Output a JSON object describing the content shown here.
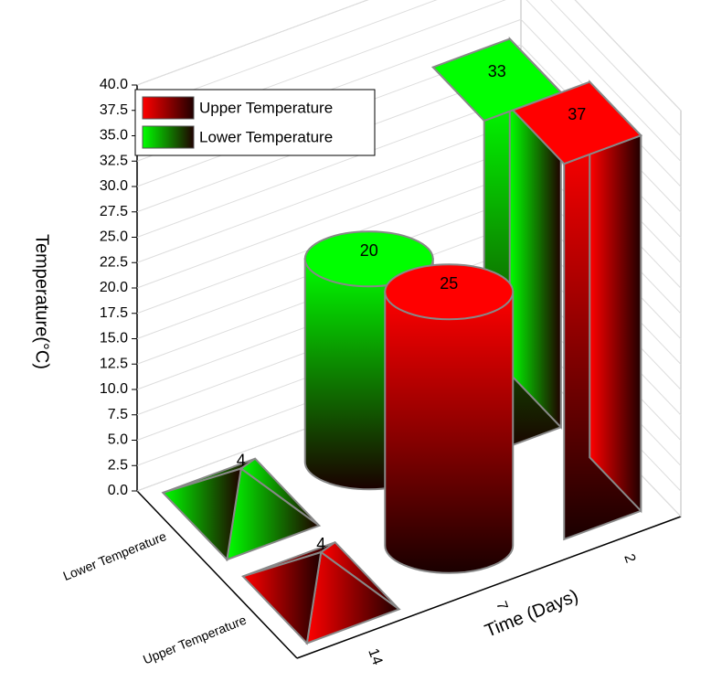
{
  "chart_data": {
    "type": "bar3d",
    "y_label": "Temperature(°C)",
    "x_label": "Time (Days)",
    "categories": [
      "2",
      "7",
      "14"
    ],
    "bar_shapes": [
      "box",
      "cylinder",
      "pyramid"
    ],
    "series": [
      {
        "name": "Upper Temperature",
        "color": "#ff0000",
        "values": [
          37,
          25,
          4
        ]
      },
      {
        "name": "Lower Temperature",
        "color": "#00ff00",
        "values": [
          33,
          20,
          4
        ]
      }
    ],
    "ylim": [
      0,
      40
    ],
    "yticks": [
      {
        "value": 0,
        "label": "0.0"
      },
      2.5,
      {
        "value": 5,
        "label": "5.0"
      },
      7.5,
      {
        "value": 10,
        "label": "10.0"
      },
      12.5,
      {
        "value": 15,
        "label": "15.0"
      },
      17.5,
      {
        "value": 20,
        "label": "20.0"
      },
      22.5,
      {
        "value": 25,
        "label": "25.0"
      },
      27.5,
      {
        "value": 30,
        "label": "30.0"
      },
      32.5,
      {
        "value": 35,
        "label": "35.0"
      },
      37.5,
      {
        "value": 40,
        "label": "40.0"
      }
    ],
    "grid": true,
    "legend": "upper-left"
  }
}
